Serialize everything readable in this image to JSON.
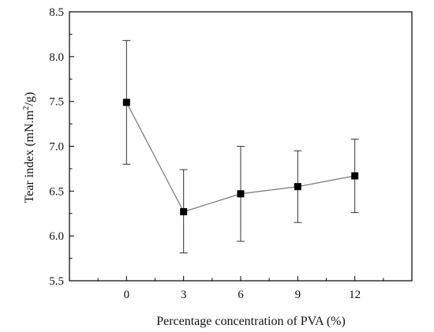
{
  "chart_data": {
    "type": "line",
    "title": "",
    "xlabel": "Percentage concentration of PVA (%)",
    "ylabel_main": "Tear index (mN.m",
    "ylabel_sup": "2",
    "ylabel_tail": "/g)",
    "x": [
      0,
      3,
      6,
      9,
      12
    ],
    "xticks": [
      "0",
      "3",
      "6",
      "9",
      "12"
    ],
    "xlim": [
      -3,
      15
    ],
    "yticks": [
      "5.5",
      "6.0",
      "6.5",
      "7.0",
      "7.5",
      "8.0",
      "8.5"
    ],
    "ylim": [
      5.5,
      8.5
    ],
    "series": [
      {
        "values": [
          7.49,
          6.27,
          6.47,
          6.55,
          6.67
        ],
        "error_low": [
          6.8,
          5.81,
          5.94,
          6.15,
          6.26
        ],
        "error_high": [
          8.18,
          6.74,
          7.0,
          6.95,
          7.08
        ],
        "marker": "square",
        "color": "#000000",
        "line_color": "#777777"
      }
    ],
    "grid": false,
    "legend": "none"
  }
}
